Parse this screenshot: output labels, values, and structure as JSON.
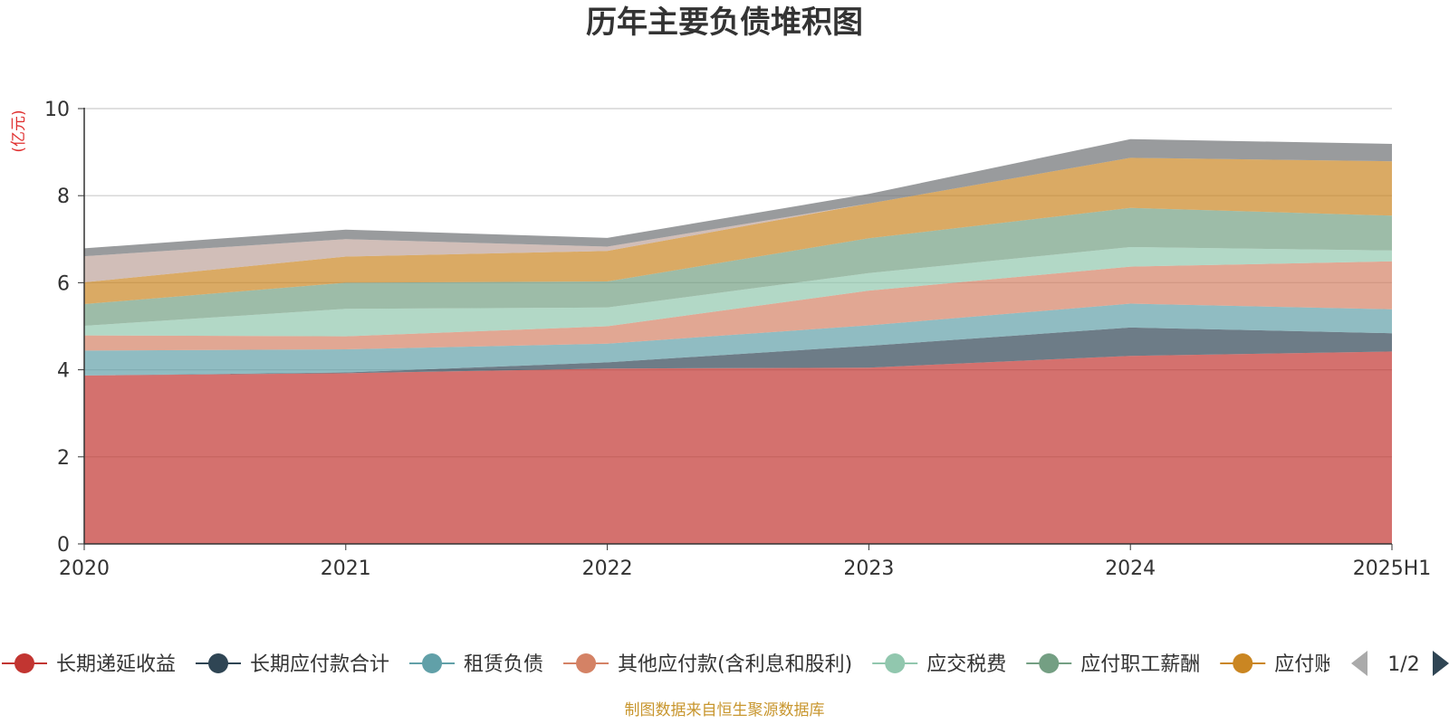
{
  "chart_data": {
    "type": "area",
    "title": "历年主要负债堆积图",
    "ylabel": "(亿元)",
    "ylim": [
      0,
      10
    ],
    "yticks": [
      "0",
      "2",
      "4",
      "6",
      "8",
      "10"
    ],
    "categories": [
      "2020",
      "2021",
      "2022",
      "2023",
      "2024",
      "2025H1"
    ],
    "series": [
      {
        "name": "长期递延收益",
        "color": "#c23531",
        "values": [
          3.87,
          3.92,
          4.03,
          4.05,
          4.32,
          4.42
        ]
      },
      {
        "name": "长期应付款合计",
        "color": "#2f4554",
        "values": [
          0.0,
          0.02,
          0.14,
          0.5,
          0.65,
          0.42
        ]
      },
      {
        "name": "租赁负债",
        "color": "#61a0a8",
        "values": [
          0.57,
          0.53,
          0.43,
          0.47,
          0.55,
          0.55
        ]
      },
      {
        "name": "其他应付款(含利息和股利)",
        "color": "#d48265",
        "values": [
          0.35,
          0.3,
          0.4,
          0.8,
          0.85,
          1.1
        ]
      },
      {
        "name": "应交税费",
        "color": "#91c7ae",
        "values": [
          0.22,
          0.63,
          0.43,
          0.4,
          0.45,
          0.25
        ]
      },
      {
        "name": "应付职工薪酬",
        "color": "#749f83",
        "values": [
          0.5,
          0.6,
          0.6,
          0.8,
          0.9,
          0.8
        ]
      },
      {
        "name": "应付账款",
        "color": "#ca8622",
        "values": [
          0.5,
          0.6,
          0.7,
          0.8,
          1.15,
          1.25
        ]
      },
      {
        "name": "",
        "color": "#bda29a",
        "values": [
          0.6,
          0.4,
          0.1,
          0.0,
          0.0,
          0.0
        ]
      },
      {
        "name": "",
        "color": "#6e7074",
        "values": [
          0.18,
          0.22,
          0.2,
          0.22,
          0.43,
          0.4
        ]
      }
    ],
    "legend": {
      "visible_count": 7,
      "partial_label": "应付账款",
      "page": "1/2",
      "placement": "bottom"
    },
    "grid": true
  },
  "footer": {
    "source": "制图数据来自恒生聚源数据库"
  }
}
